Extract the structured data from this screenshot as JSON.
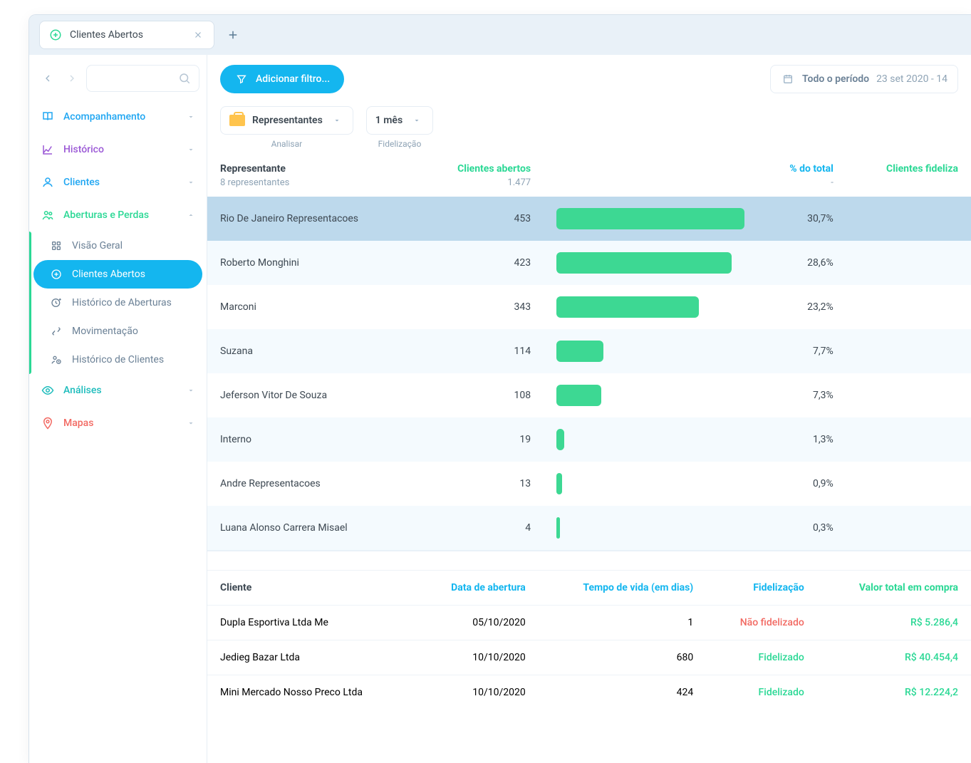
{
  "tab": {
    "title": "Clientes Abertos"
  },
  "filter_button": "Adicionar filtro...",
  "period": {
    "label": "Todo o período",
    "range": "23 set 2020 - 14"
  },
  "chips": {
    "representantes": {
      "label": "Representantes",
      "sub": "Analisar"
    },
    "fidelizacao": {
      "label": "1 mês",
      "sub": "Fidelização"
    }
  },
  "sidebar": {
    "items": [
      {
        "label": "Acompanhamento",
        "color": "c-blue",
        "icon": "book"
      },
      {
        "label": "Histórico",
        "color": "c-purple",
        "icon": "chart"
      },
      {
        "label": "Clientes",
        "color": "c-blue",
        "icon": "user"
      },
      {
        "label": "Aberturas e Perdas",
        "color": "c-green",
        "icon": "people",
        "expanded": true
      },
      {
        "label": "Análises",
        "color": "c-teal",
        "icon": "eye"
      },
      {
        "label": "Mapas",
        "color": "c-red",
        "icon": "pin"
      }
    ],
    "sub": [
      {
        "label": "Visão Geral",
        "icon": "grid"
      },
      {
        "label": "Clientes Abertos",
        "icon": "plus-circle",
        "active": true
      },
      {
        "label": "Histórico de Aberturas",
        "icon": "clock-plus"
      },
      {
        "label": "Movimentação",
        "icon": "swap"
      },
      {
        "label": "Histórico de Clientes",
        "icon": "user-clock"
      }
    ]
  },
  "rep_table": {
    "headers": {
      "rep": "Representante",
      "clientes": "Clientes abertos",
      "pct": "% do total",
      "fidelizados": "Clientes fideliza"
    },
    "subheader": {
      "count": "8 representantes",
      "total": "1.477",
      "pct": "-"
    },
    "bar_color": "#3dd893",
    "max_pct": 30.7,
    "rows": [
      {
        "name": "Rio De Janeiro Representacoes",
        "val": "453",
        "pct": 30.7,
        "pct_label": "30,7%",
        "selected": true
      },
      {
        "name": "Roberto Monghini",
        "val": "423",
        "pct": 28.6,
        "pct_label": "28,6%"
      },
      {
        "name": "Marconi",
        "val": "343",
        "pct": 23.2,
        "pct_label": "23,2%"
      },
      {
        "name": "Suzana",
        "val": "114",
        "pct": 7.7,
        "pct_label": "7,7%"
      },
      {
        "name": "Jeferson Vitor De Souza",
        "val": "108",
        "pct": 7.3,
        "pct_label": "7,3%"
      },
      {
        "name": "Interno",
        "val": "19",
        "pct": 1.3,
        "pct_label": "1,3%"
      },
      {
        "name": "Andre Representacoes",
        "val": "13",
        "pct": 0.9,
        "pct_label": "0,9%"
      },
      {
        "name": "Luana Alonso Carrera Misael",
        "val": "4",
        "pct": 0.3,
        "pct_label": "0,3%"
      }
    ]
  },
  "cli_table": {
    "headers": {
      "cliente": "Cliente",
      "data": "Data de abertura",
      "tempo": "Tempo de vida (em dias)",
      "fid": "Fidelização",
      "valor": "Valor total em compra"
    },
    "rows": [
      {
        "cliente": "Dupla Esportiva Ltda Me",
        "data": "05/10/2020",
        "tempo": "1",
        "fid": "Não fidelizado",
        "fid_ok": false,
        "valor": "R$ 5.286,4"
      },
      {
        "cliente": "Jedieg Bazar Ltda",
        "data": "10/10/2020",
        "tempo": "680",
        "fid": "Fidelizado",
        "fid_ok": true,
        "valor": "R$ 40.454,4"
      },
      {
        "cliente": "Mini Mercado Nosso Preco Ltda",
        "data": "10/10/2020",
        "tempo": "424",
        "fid": "Fidelizado",
        "fid_ok": true,
        "valor": "R$ 12.224,2"
      }
    ]
  }
}
